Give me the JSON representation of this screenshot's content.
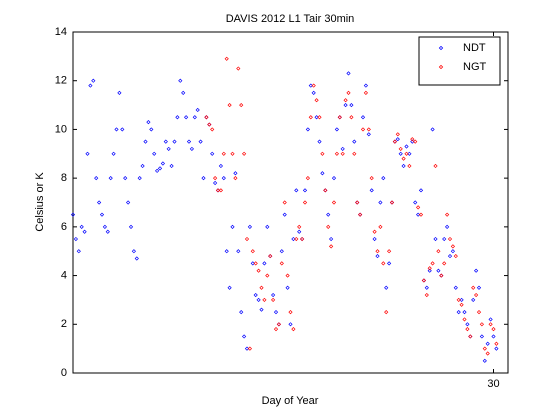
{
  "chart_data": {
    "type": "scatter",
    "title": "DAVIS 2012 L1 Tair 30min",
    "x_label": "Day of Year",
    "y_label": "Celsius or K",
    "xlim": [
      1,
      31
    ],
    "xticks": [
      30
    ],
    "ylim": [
      0,
      14
    ],
    "yticks": [
      0,
      2,
      4,
      6,
      8,
      10,
      12,
      14
    ],
    "grid": false,
    "legend": "northeast",
    "series": [
      {
        "name": "NDT",
        "color": "#0000ff",
        "x": [
          1,
          1.2,
          1.4,
          1.6,
          1.8,
          2,
          2.2,
          2.4,
          2.6,
          2.8,
          3,
          3.2,
          3.4,
          3.6,
          3.8,
          4,
          4.2,
          4.4,
          4.6,
          4.8,
          5,
          5.2,
          5.4,
          5.6,
          5.8,
          6,
          6.2,
          6.4,
          6.6,
          6.8,
          7,
          7.2,
          7.4,
          7.6,
          7.8,
          8,
          8.2,
          8.4,
          8.6,
          8.8,
          9,
          9.2,
          9.4,
          9.6,
          9.8,
          10,
          10.2,
          10.4,
          10.6,
          10.8,
          11,
          11.2,
          11.4,
          11.6,
          11.8,
          12,
          12.2,
          12.4,
          12.6,
          12.8,
          13,
          13.2,
          13.4,
          13.6,
          13.8,
          14,
          14.2,
          14.4,
          14.6,
          14.8,
          15,
          15.2,
          15.4,
          15.6,
          15.8,
          16,
          16.2,
          16.4,
          16.6,
          16.8,
          17,
          17.2,
          17.4,
          17.6,
          17.8,
          18,
          18.2,
          18.4,
          18.6,
          18.8,
          19,
          19.2,
          19.4,
          19.6,
          19.8,
          20,
          20.2,
          20.4,
          20.6,
          20.8,
          21,
          21.2,
          21.4,
          21.6,
          21.8,
          22,
          22.2,
          22.4,
          22.6,
          22.8,
          23,
          23.2,
          23.4,
          23.6,
          23.8,
          24,
          24.2,
          24.4,
          24.6,
          24.8,
          25,
          25.2,
          25.4,
          25.6,
          25.8,
          26,
          26.2,
          26.4,
          26.6,
          26.8,
          27,
          27.2,
          27.4,
          27.6,
          27.8,
          28,
          28.2,
          28.4,
          28.6,
          28.8,
          29,
          29.2,
          29.4,
          29.6,
          29.8,
          30,
          30.2
        ],
        "values": [
          6.5,
          5.5,
          5.0,
          6.0,
          5.8,
          9.0,
          11.8,
          12.0,
          8,
          7,
          6.5,
          6,
          5.8,
          8,
          9,
          10,
          11.5,
          10,
          8,
          7,
          6,
          5,
          4.7,
          8,
          8.5,
          9.5,
          10.3,
          10.0,
          9,
          8.3,
          8.4,
          8.6,
          9.5,
          9.2,
          8.5,
          9.5,
          10.5,
          12,
          11.5,
          10.5,
          9.5,
          9.2,
          10.5,
          10.8,
          9.5,
          8,
          10.5,
          10.2,
          9,
          7.8,
          7.5,
          8.5,
          8.0,
          5,
          3.5,
          6,
          8.2,
          5,
          2.5,
          1.5,
          1.0,
          6,
          4.5,
          3.2,
          3.0,
          2.6,
          4.5,
          6,
          4.8,
          3.2,
          2.5,
          2.0,
          5,
          6.5,
          3.5,
          2.0,
          5.5,
          7.5,
          5.8,
          5.5,
          7.5,
          10,
          11.8,
          11.5,
          10.5,
          9.5,
          8.2,
          7.5,
          6.5,
          5.5,
          8,
          10,
          10.5,
          9.2,
          11,
          12.3,
          11,
          9.5,
          7,
          6.5,
          10.5,
          11.8,
          9.8,
          7.5,
          5.5,
          4.8,
          7,
          8,
          3.5,
          4.5,
          7,
          9.5,
          9.6,
          9,
          8.5,
          9.3,
          9.0,
          9.5,
          7,
          6.5,
          7.5,
          3.8,
          3.5,
          4.2,
          10,
          5.5,
          4.2,
          4.0,
          5.5,
          6.0,
          4.8,
          5.0,
          3.5,
          2.5,
          3.0,
          2.5,
          2.0,
          1.5,
          3,
          4.2,
          3.5,
          1.5,
          0.5,
          1.2,
          2.2,
          1.5,
          1.0
        ]
      },
      {
        "name": "NGT",
        "color": "#ff0000",
        "x": [
          10.2,
          10.4,
          10.6,
          10.8,
          11,
          11.2,
          11.4,
          11.6,
          11.8,
          12,
          12.2,
          12.4,
          12.6,
          12.8,
          13,
          13.2,
          13.4,
          13.6,
          13.8,
          14,
          14.2,
          14.4,
          14.6,
          14.8,
          15,
          15.2,
          15.4,
          15.6,
          15.8,
          16,
          16.2,
          16.4,
          16.6,
          16.8,
          17,
          17.2,
          17.4,
          17.6,
          17.8,
          18,
          18.2,
          18.4,
          18.6,
          18.8,
          19,
          19.2,
          19.4,
          19.6,
          19.8,
          20,
          20.2,
          20.4,
          20.6,
          20.8,
          21,
          21.2,
          21.4,
          21.6,
          21.8,
          22,
          22.2,
          22.4,
          22.6,
          22.8,
          23,
          23.2,
          23.4,
          23.6,
          23.8,
          24,
          24.2,
          24.4,
          24.6,
          24.8,
          25,
          25.2,
          25.4,
          25.6,
          25.8,
          26,
          26.2,
          26.4,
          26.6,
          26.8,
          27,
          27.2,
          27.4,
          27.6,
          27.8,
          28,
          28.2,
          28.4,
          28.6,
          28.8,
          29,
          29.2,
          29.4,
          29.6,
          29.8,
          30,
          30.2
        ],
        "values": [
          10.5,
          10.2,
          10,
          8,
          7.5,
          7.5,
          9,
          12.9,
          11,
          9,
          8,
          12.5,
          11,
          9,
          5.5,
          1.0,
          5,
          4.5,
          4.2,
          3.5,
          3.0,
          4.0,
          4.8,
          3.0,
          1.8,
          2.0,
          4.5,
          7,
          4,
          2.5,
          1.8,
          5.5,
          6.0,
          5.5,
          7,
          8,
          10.5,
          11.8,
          11.2,
          10.5,
          9,
          7.5,
          6,
          5.2,
          7,
          9,
          10.5,
          9,
          11.2,
          11.5,
          10.5,
          9,
          7,
          6.5,
          10,
          11.5,
          10,
          8,
          5.8,
          5.0,
          6,
          4.5,
          2.5,
          5,
          7,
          9.5,
          9.8,
          9.2,
          8.8,
          9,
          8.5,
          9.6,
          9.5,
          6.8,
          6.5,
          3.8,
          3.2,
          4.3,
          4.5,
          8.5,
          5,
          4.0,
          4.5,
          6.5,
          5.5,
          5.2,
          4.8,
          3,
          2.8,
          2.2,
          1.8,
          1.5,
          3.5,
          3.2,
          2.5,
          2.0,
          1.0,
          0.8,
          2.0,
          1.8,
          1.2
        ]
      }
    ]
  }
}
